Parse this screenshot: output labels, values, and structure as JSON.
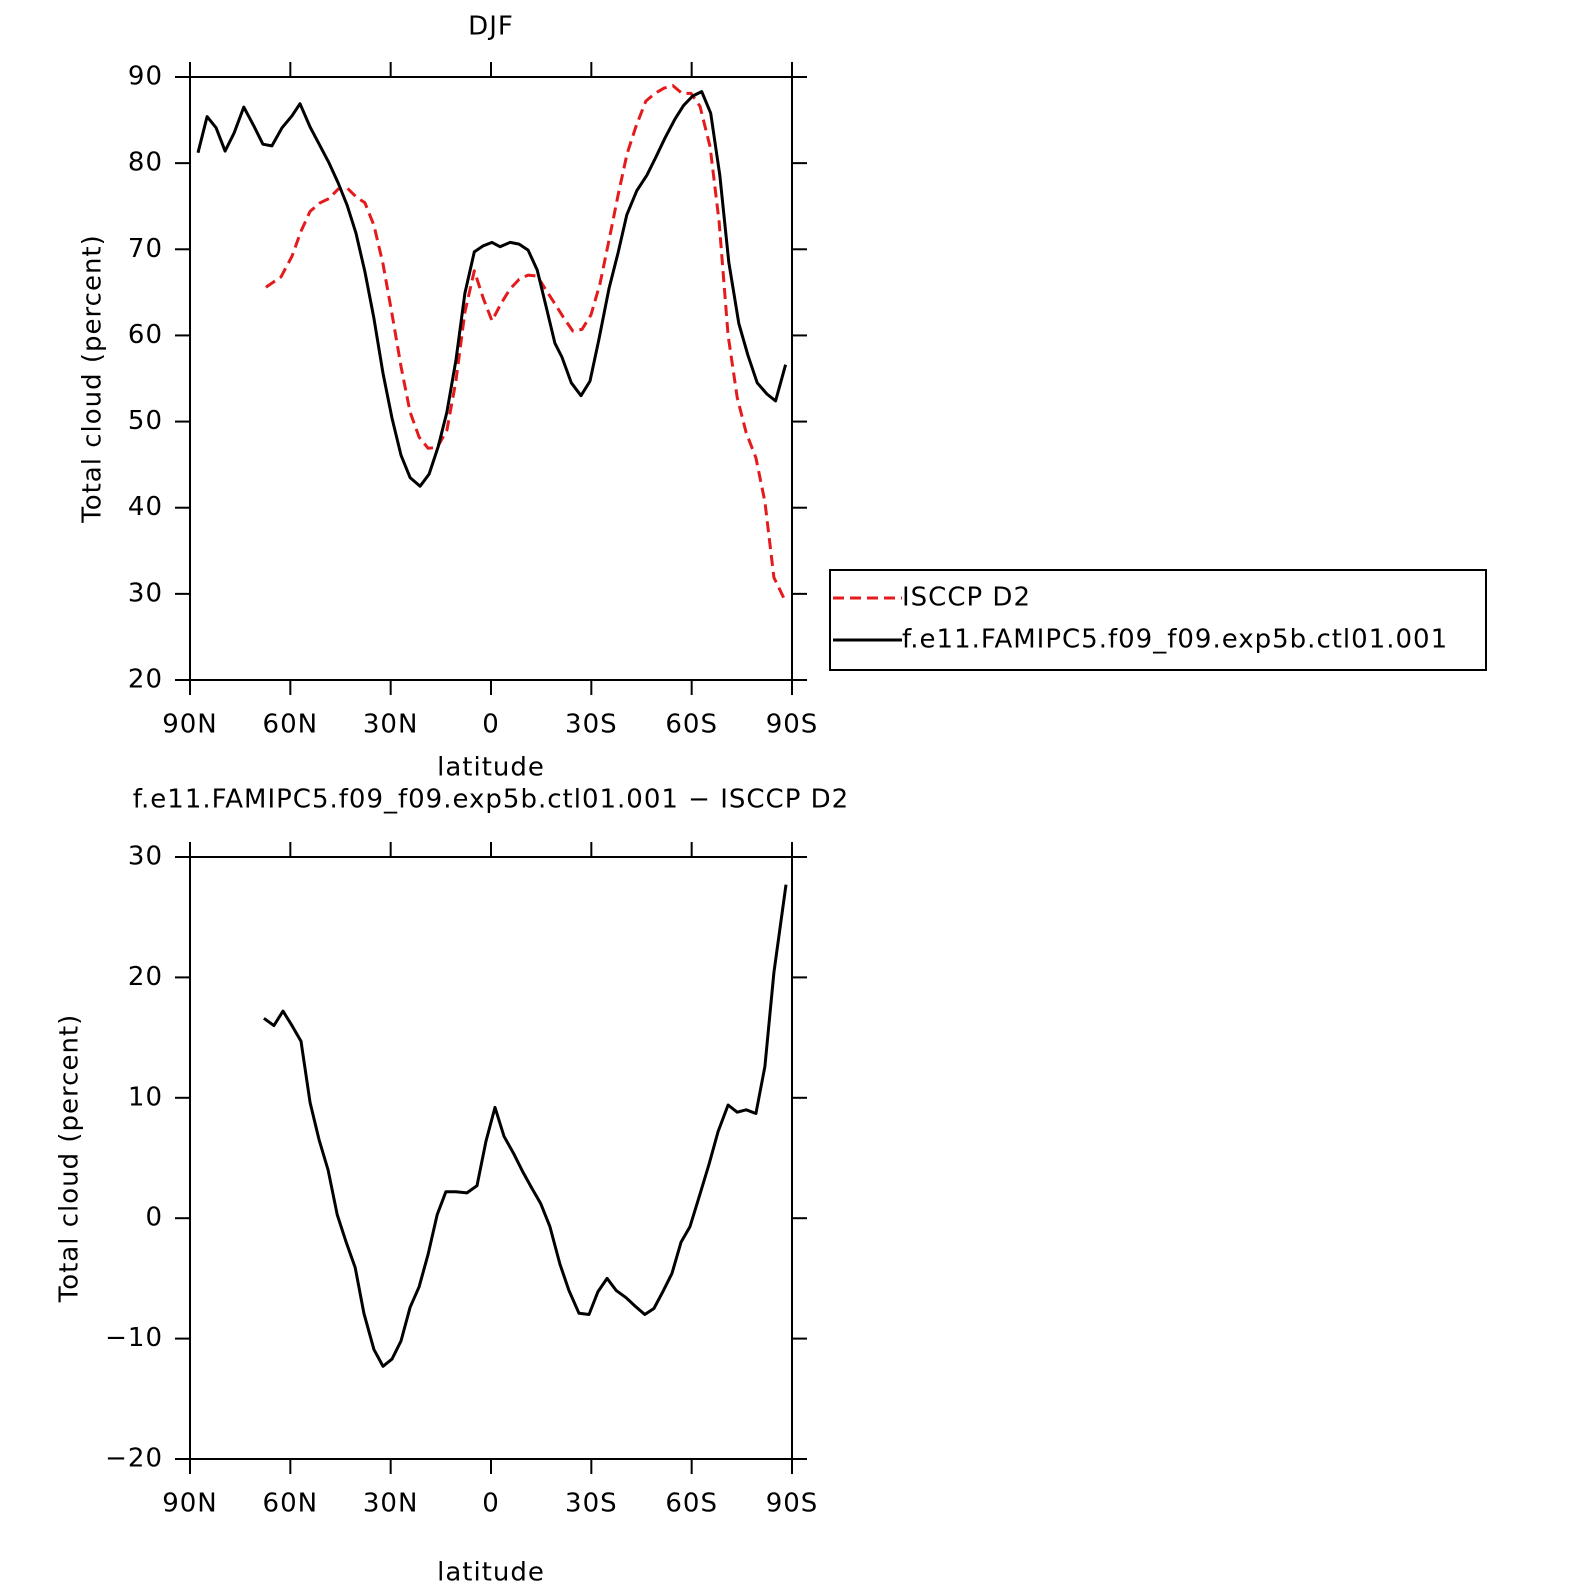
{
  "chart_data": [
    {
      "type": "line",
      "title": "DJF",
      "xlabel": "latitude",
      "ylabel": "Total cloud (percent)",
      "xlim": [
        90,
        -90
      ],
      "xticks": [
        {
          "value": 90,
          "label": "90N"
        },
        {
          "value": 60,
          "label": "60N"
        },
        {
          "value": 30,
          "label": "30N"
        },
        0,
        {
          "value": -30,
          "label": "30S"
        },
        {
          "value": -60,
          "label": "60S"
        },
        {
          "value": -90,
          "label": "90S"
        }
      ],
      "ylim": [
        20,
        90
      ],
      "yticks": [
        20,
        30,
        40,
        50,
        60,
        70,
        80,
        90
      ],
      "legend": "right",
      "series": [
        {
          "name": "ISCCP D2",
          "color": "#e41a1c",
          "linestyle": "dashed",
          "x": [
            67.3,
            62.8,
            59.5,
            56.8,
            54.1,
            51.1,
            48.4,
            45.7,
            43.0,
            40.4,
            37.7,
            35.0,
            32.3,
            29.6,
            26.9,
            24.2,
            21.5,
            18.8,
            16.1,
            13.2,
            10.5,
            7.8,
            5.0,
            2.3,
            -0.3,
            -3.0,
            -5.7,
            -8.4,
            -11.1,
            -13.8,
            -16.4,
            -19.4,
            -21.8,
            -24.5,
            -27.2,
            -29.9,
            -32.6,
            -35.3,
            -38.0,
            -40.7,
            -43.4,
            -46.3,
            -49.0,
            -51.7,
            -54.4,
            -57.1,
            -59.8,
            -62.5,
            -65.5,
            -68.2,
            -70.9,
            -73.6,
            -76.3,
            -79.2,
            -81.9,
            -84.6,
            -88.2
          ],
          "values": [
            65.6,
            66.8,
            69.2,
            72.1,
            74.4,
            75.4,
            75.9,
            77.0,
            77.1,
            76.1,
            75.4,
            72.8,
            68.3,
            62.5,
            56.4,
            51.1,
            48.2,
            46.9,
            47.0,
            49.0,
            54.7,
            62.7,
            67.5,
            64.3,
            61.7,
            63.7,
            65.4,
            66.5,
            67.0,
            66.9,
            65.3,
            63.5,
            62.0,
            60.5,
            60.7,
            62.4,
            66.0,
            71.1,
            76.3,
            81.1,
            84.3,
            87.2,
            88.1,
            88.7,
            89.0,
            88.1,
            88.1,
            86.6,
            81.9,
            73.2,
            60.0,
            52.8,
            48.7,
            45.8,
            40.7,
            31.9,
            29.0
          ]
        },
        {
          "name": "f.e11.FAMIPC5.f09_f09.exp5b.ctl01.001",
          "color": "#000000",
          "linestyle": "solid",
          "x": [
            87.6,
            84.9,
            82.2,
            79.5,
            76.8,
            73.9,
            70.9,
            68.2,
            65.5,
            62.5,
            59.5,
            57.1,
            54.1,
            51.1,
            48.4,
            45.7,
            43.0,
            40.4,
            37.7,
            35.0,
            32.3,
            29.6,
            26.9,
            24.2,
            21.2,
            18.5,
            15.8,
            13.2,
            10.5,
            7.8,
            5.0,
            2.3,
            -0.3,
            -2.7,
            -5.7,
            -8.4,
            -11.1,
            -13.8,
            -16.4,
            -19.1,
            -21.2,
            -24.0,
            -26.9,
            -29.6,
            -32.3,
            -35.3,
            -38.0,
            -40.6,
            -43.6,
            -46.6,
            -49.3,
            -52.0,
            -55.0,
            -57.6,
            -60.3,
            -63.0,
            -65.7,
            -68.4,
            -71.1,
            -74.1,
            -76.8,
            -79.6,
            -82.5,
            -85.1,
            -88.1
          ],
          "values": [
            81.2,
            85.4,
            84.1,
            81.4,
            83.5,
            86.5,
            84.3,
            82.2,
            82.0,
            84.1,
            85.5,
            86.9,
            84.2,
            82.0,
            80.0,
            77.7,
            75.1,
            71.9,
            67.4,
            62.0,
            55.6,
            50.4,
            46.1,
            43.5,
            42.5,
            43.9,
            47.1,
            51.1,
            57.1,
            64.9,
            69.7,
            70.4,
            70.8,
            70.3,
            70.8,
            70.6,
            69.9,
            67.6,
            63.5,
            59.1,
            57.5,
            54.5,
            53.0,
            54.7,
            59.6,
            65.5,
            69.6,
            74.0,
            76.8,
            78.6,
            80.7,
            82.9,
            85.1,
            86.7,
            87.8,
            88.3,
            85.8,
            78.6,
            68.5,
            61.4,
            57.7,
            54.5,
            53.2,
            52.4,
            56.6
          ]
        }
      ]
    },
    {
      "type": "line",
      "title": "f.e11.FAMIPC5.f09_f09.exp5b.ctl01.001 − ISCCP D2",
      "xlabel": "latitude",
      "ylabel": "Total cloud (percent)",
      "xlim": [
        90,
        -90
      ],
      "xticks": [
        {
          "value": 90,
          "label": "90N"
        },
        {
          "value": 60,
          "label": "60N"
        },
        {
          "value": 30,
          "label": "30N"
        },
        0,
        {
          "value": -30,
          "label": "30S"
        },
        {
          "value": -60,
          "label": "60S"
        },
        {
          "value": -90,
          "label": "90S"
        }
      ],
      "ylim": [
        -20,
        30
      ],
      "yticks": [
        {
          "value": -20,
          "label": "−20"
        },
        {
          "value": -10,
          "label": "−10"
        },
        0,
        10,
        20,
        30
      ],
      "series": [
        {
          "color": "#000000",
          "linestyle": "solid",
          "x": [
            67.9,
            64.9,
            62.2,
            59.5,
            56.8,
            54.1,
            51.4,
            48.7,
            46.0,
            43.3,
            40.6,
            38.0,
            35.0,
            32.3,
            29.6,
            26.9,
            24.2,
            21.5,
            18.8,
            16.1,
            13.5,
            10.5,
            7.2,
            4.2,
            1.5,
            -1.2,
            -3.9,
            -6.9,
            -9.6,
            -12.2,
            -14.9,
            -17.6,
            -20.6,
            -23.3,
            -26.3,
            -29.3,
            -32.0,
            -34.7,
            -37.4,
            -40.4,
            -43.1,
            -46.0,
            -48.7,
            -51.4,
            -54.1,
            -56.8,
            -59.5,
            -62.5,
            -65.2,
            -67.9,
            -70.9,
            -73.6,
            -76.3,
            -79.2,
            -81.9,
            -84.6,
            -88.2
          ],
          "values": [
            16.6,
            16.0,
            17.2,
            16.0,
            14.7,
            9.6,
            6.5,
            4.0,
            0.3,
            -2.0,
            -4.1,
            -7.9,
            -10.9,
            -12.3,
            -11.7,
            -10.2,
            -7.4,
            -5.7,
            -3.0,
            0.3,
            2.2,
            2.2,
            2.1,
            2.7,
            6.4,
            9.2,
            6.8,
            5.3,
            3.8,
            2.5,
            1.2,
            -0.7,
            -3.8,
            -6.0,
            -7.9,
            -8.0,
            -6.1,
            -5.0,
            -6.0,
            -6.6,
            -7.3,
            -8.0,
            -7.5,
            -6.1,
            -4.6,
            -2.0,
            -0.7,
            2.0,
            4.5,
            7.2,
            9.4,
            8.8,
            9.0,
            8.7,
            12.6,
            20.4,
            27.7
          ]
        }
      ]
    }
  ]
}
